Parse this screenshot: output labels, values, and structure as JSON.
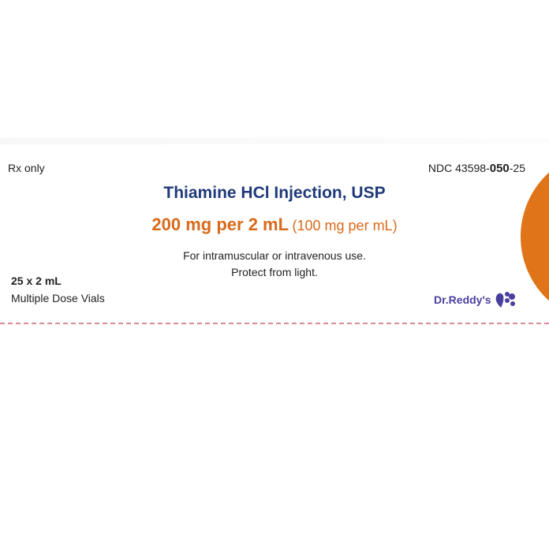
{
  "label": {
    "rx": "Rx only",
    "ndc_prefix": "NDC 43598-",
    "ndc_product": "050",
    "ndc_suffix": "-25",
    "title": "Thiamine HCl Injection, USP",
    "strength": "200 mg per 2 mL",
    "concentration": "(100 mg per mL)",
    "use": "For intramuscular or intravenous use.",
    "storage": "Protect from light.",
    "quantity": "25 x 2 mL",
    "container": "Multiple Dose Vials",
    "brand": "Dr.Reddy's"
  },
  "colors": {
    "title": "#1f3a7a",
    "strength": "#d96a1a",
    "circle": "#e07418",
    "brand": "#4a3fa0",
    "dash": "#d98a94"
  }
}
